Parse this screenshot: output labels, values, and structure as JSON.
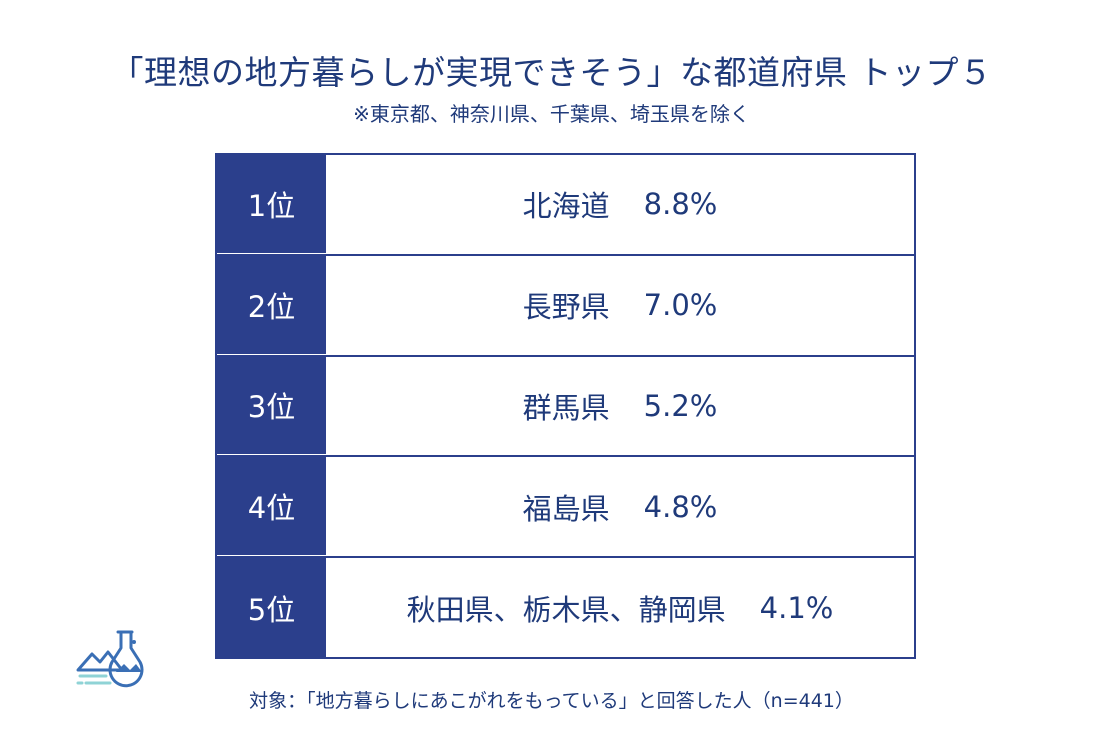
{
  "title": "「理想の地方暮らしが実現できそう」な都道府県 トップ５",
  "subtitle": "※東京都、神奈川県、千葉県、埼玉県を除く",
  "footnote": "対象：「地方暮らしにあこがれをもっている」と回答した人（n=441）",
  "colors": {
    "accent": "#2b3f8c",
    "text": "#1f3a7a",
    "logo": "#3a6fb5",
    "logo_light": "#8fd3d6"
  },
  "logo_icon": "flask-mountain-icon",
  "chart_data": {
    "type": "table",
    "rows": [
      {
        "rank": "1位",
        "name": "北海道",
        "value": "8.8%"
      },
      {
        "rank": "2位",
        "name": "長野県",
        "value": "7.0%"
      },
      {
        "rank": "3位",
        "name": "群馬県",
        "value": "5.2%"
      },
      {
        "rank": "4位",
        "name": "福島県",
        "value": "4.8%"
      },
      {
        "rank": "5位",
        "name": "秋田県、栃木県、静岡県",
        "value": "4.1%"
      }
    ]
  }
}
